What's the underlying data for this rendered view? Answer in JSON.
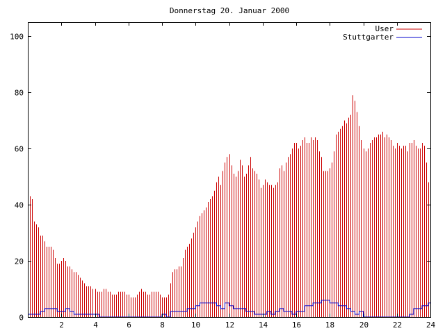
{
  "chart_data": {
    "type": "bar",
    "title": "Donnerstag 20. Januar 2000",
    "xlabel": "",
    "ylabel": "",
    "xlim": [
      0,
      24
    ],
    "ylim": [
      0,
      105
    ],
    "xticks": [
      2,
      4,
      6,
      8,
      10,
      12,
      14,
      16,
      18,
      20,
      22,
      24
    ],
    "yticks": [
      0,
      20,
      40,
      60,
      80,
      100
    ],
    "grid": false,
    "legend_position": "top-right",
    "colors": {
      "axis": "#000000",
      "user": "#cc0000",
      "stuttgarter": "#0000cc"
    },
    "series": [
      {
        "name": "User",
        "style": "impulses",
        "values": [
          [
            0.0,
            43
          ],
          [
            0.125,
            43
          ],
          [
            0.25,
            42
          ],
          [
            0.375,
            34
          ],
          [
            0.5,
            33
          ],
          [
            0.625,
            32
          ],
          [
            0.75,
            29
          ],
          [
            0.875,
            29
          ],
          [
            1.0,
            27
          ],
          [
            1.125,
            25
          ],
          [
            1.25,
            25
          ],
          [
            1.375,
            25
          ],
          [
            1.5,
            24
          ],
          [
            1.625,
            21
          ],
          [
            1.75,
            19
          ],
          [
            1.875,
            19
          ],
          [
            2.0,
            20
          ],
          [
            2.125,
            21
          ],
          [
            2.25,
            20
          ],
          [
            2.375,
            18
          ],
          [
            2.5,
            18
          ],
          [
            2.625,
            17
          ],
          [
            2.75,
            16
          ],
          [
            2.875,
            16
          ],
          [
            3.0,
            15
          ],
          [
            3.125,
            14
          ],
          [
            3.25,
            13
          ],
          [
            3.375,
            12
          ],
          [
            3.5,
            11
          ],
          [
            3.625,
            11
          ],
          [
            3.75,
            11
          ],
          [
            3.875,
            10
          ],
          [
            4.0,
            10
          ],
          [
            4.125,
            9
          ],
          [
            4.25,
            9
          ],
          [
            4.375,
            9
          ],
          [
            4.5,
            10
          ],
          [
            4.625,
            10
          ],
          [
            4.75,
            9
          ],
          [
            4.875,
            9
          ],
          [
            5.0,
            8
          ],
          [
            5.125,
            8
          ],
          [
            5.25,
            8
          ],
          [
            5.375,
            9
          ],
          [
            5.5,
            9
          ],
          [
            5.625,
            9
          ],
          [
            5.75,
            9
          ],
          [
            5.875,
            8
          ],
          [
            6.0,
            8
          ],
          [
            6.125,
            7
          ],
          [
            6.25,
            7
          ],
          [
            6.375,
            7
          ],
          [
            6.5,
            8
          ],
          [
            6.625,
            9
          ],
          [
            6.75,
            10
          ],
          [
            6.875,
            9
          ],
          [
            7.0,
            9
          ],
          [
            7.125,
            8
          ],
          [
            7.25,
            8
          ],
          [
            7.375,
            9
          ],
          [
            7.5,
            9
          ],
          [
            7.625,
            9
          ],
          [
            7.75,
            9
          ],
          [
            7.875,
            8
          ],
          [
            8.0,
            7
          ],
          [
            8.125,
            7
          ],
          [
            8.25,
            7
          ],
          [
            8.375,
            8
          ],
          [
            8.5,
            12
          ],
          [
            8.625,
            16
          ],
          [
            8.75,
            17
          ],
          [
            8.875,
            17
          ],
          [
            9.0,
            18
          ],
          [
            9.125,
            18
          ],
          [
            9.25,
            21
          ],
          [
            9.375,
            24
          ],
          [
            9.5,
            25
          ],
          [
            9.625,
            26
          ],
          [
            9.75,
            28
          ],
          [
            9.875,
            30
          ],
          [
            10.0,
            32
          ],
          [
            10.125,
            34
          ],
          [
            10.25,
            36
          ],
          [
            10.375,
            37
          ],
          [
            10.5,
            38
          ],
          [
            10.625,
            39
          ],
          [
            10.75,
            41
          ],
          [
            10.875,
            42
          ],
          [
            11.0,
            43
          ],
          [
            11.125,
            45
          ],
          [
            11.25,
            48
          ],
          [
            11.375,
            50
          ],
          [
            11.5,
            47
          ],
          [
            11.625,
            52
          ],
          [
            11.75,
            55
          ],
          [
            11.875,
            57
          ],
          [
            12.0,
            58
          ],
          [
            12.125,
            54
          ],
          [
            12.25,
            51
          ],
          [
            12.375,
            50
          ],
          [
            12.5,
            52
          ],
          [
            12.625,
            56
          ],
          [
            12.75,
            54
          ],
          [
            12.875,
            50
          ],
          [
            13.0,
            51
          ],
          [
            13.125,
            54
          ],
          [
            13.25,
            57
          ],
          [
            13.375,
            53
          ],
          [
            13.5,
            52
          ],
          [
            13.625,
            51
          ],
          [
            13.75,
            49
          ],
          [
            13.875,
            46
          ],
          [
            14.0,
            47
          ],
          [
            14.125,
            49
          ],
          [
            14.25,
            48
          ],
          [
            14.375,
            47
          ],
          [
            14.5,
            47
          ],
          [
            14.625,
            46
          ],
          [
            14.75,
            47
          ],
          [
            14.875,
            48
          ],
          [
            15.0,
            53
          ],
          [
            15.125,
            54
          ],
          [
            15.25,
            52
          ],
          [
            15.375,
            55
          ],
          [
            15.5,
            57
          ],
          [
            15.625,
            58
          ],
          [
            15.75,
            60
          ],
          [
            15.875,
            62
          ],
          [
            16.0,
            62
          ],
          [
            16.125,
            60
          ],
          [
            16.25,
            61
          ],
          [
            16.375,
            63
          ],
          [
            16.5,
            64
          ],
          [
            16.625,
            62
          ],
          [
            16.75,
            62
          ],
          [
            16.875,
            64
          ],
          [
            17.0,
            63
          ],
          [
            17.125,
            64
          ],
          [
            17.25,
            63
          ],
          [
            17.375,
            59
          ],
          [
            17.5,
            57
          ],
          [
            17.625,
            52
          ],
          [
            17.75,
            52
          ],
          [
            17.875,
            52
          ],
          [
            18.0,
            53
          ],
          [
            18.125,
            55
          ],
          [
            18.25,
            59
          ],
          [
            18.375,
            65
          ],
          [
            18.5,
            66
          ],
          [
            18.625,
            67
          ],
          [
            18.75,
            68
          ],
          [
            18.875,
            70
          ],
          [
            19.0,
            69
          ],
          [
            19.125,
            71
          ],
          [
            19.25,
            72
          ],
          [
            19.375,
            79
          ],
          [
            19.5,
            77
          ],
          [
            19.625,
            73
          ],
          [
            19.75,
            68
          ],
          [
            19.875,
            63
          ],
          [
            20.0,
            60
          ],
          [
            20.125,
            59
          ],
          [
            20.25,
            60
          ],
          [
            20.375,
            62
          ],
          [
            20.5,
            63
          ],
          [
            20.625,
            64
          ],
          [
            20.75,
            64
          ],
          [
            20.875,
            65
          ],
          [
            21.0,
            65
          ],
          [
            21.125,
            66
          ],
          [
            21.25,
            64
          ],
          [
            21.375,
            65
          ],
          [
            21.5,
            64
          ],
          [
            21.625,
            63
          ],
          [
            21.75,
            61
          ],
          [
            21.875,
            60
          ],
          [
            22.0,
            62
          ],
          [
            22.125,
            61
          ],
          [
            22.25,
            60
          ],
          [
            22.375,
            61
          ],
          [
            22.5,
            61
          ],
          [
            22.625,
            59
          ],
          [
            22.75,
            62
          ],
          [
            22.875,
            62
          ],
          [
            23.0,
            63
          ],
          [
            23.125,
            61
          ],
          [
            23.25,
            60
          ],
          [
            23.375,
            60
          ],
          [
            23.5,
            62
          ],
          [
            23.625,
            61
          ],
          [
            23.75,
            55
          ],
          [
            23.875,
            48
          ]
        ]
      },
      {
        "name": "Stuttgarter",
        "style": "steps",
        "values": [
          [
            0.0,
            1
          ],
          [
            0.75,
            2
          ],
          [
            1.0,
            3
          ],
          [
            1.75,
            2
          ],
          [
            2.25,
            3
          ],
          [
            2.5,
            2
          ],
          [
            2.75,
            1
          ],
          [
            4.25,
            0
          ],
          [
            8.0,
            1
          ],
          [
            8.25,
            0
          ],
          [
            8.5,
            2
          ],
          [
            9.5,
            3
          ],
          [
            10.0,
            4
          ],
          [
            10.25,
            5
          ],
          [
            11.25,
            4
          ],
          [
            11.5,
            3
          ],
          [
            11.75,
            5
          ],
          [
            12.0,
            4
          ],
          [
            12.25,
            3
          ],
          [
            12.5,
            3
          ],
          [
            13.0,
            2
          ],
          [
            13.5,
            1
          ],
          [
            14.25,
            2
          ],
          [
            14.5,
            1
          ],
          [
            14.75,
            2
          ],
          [
            15.0,
            3
          ],
          [
            15.25,
            2
          ],
          [
            15.75,
            1
          ],
          [
            16.0,
            2
          ],
          [
            16.5,
            4
          ],
          [
            17.0,
            5
          ],
          [
            17.5,
            6
          ],
          [
            18.0,
            5
          ],
          [
            18.5,
            4
          ],
          [
            19.0,
            3
          ],
          [
            19.25,
            2
          ],
          [
            19.5,
            1
          ],
          [
            19.75,
            2
          ],
          [
            20.0,
            0
          ],
          [
            22.75,
            1
          ],
          [
            23.0,
            3
          ],
          [
            23.5,
            4
          ],
          [
            23.875,
            5
          ],
          [
            24.0,
            5
          ]
        ]
      }
    ]
  }
}
